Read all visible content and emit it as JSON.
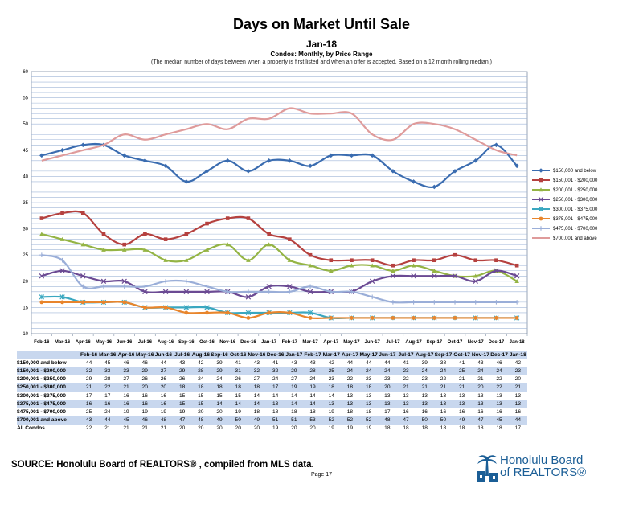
{
  "header": {
    "title": "Days on Market Until Sale",
    "subtitle": "Jan-18",
    "subtitle2": "Condos: Monthly, by Price Range",
    "note": "(The median number of days between when a property is first listed and when an offer is accepted. Based on a 12 month rolling median.)"
  },
  "chart_data": {
    "type": "line",
    "ylim": [
      10,
      60
    ],
    "yticks": [
      10,
      15,
      20,
      25,
      30,
      35,
      40,
      45,
      50,
      55,
      60
    ],
    "grid": true,
    "legend": "right",
    "categories": [
      "Feb-16",
      "Mar-16",
      "Apr-16",
      "May-16",
      "Jun-16",
      "Jul-16",
      "Aug-16",
      "Sep-16",
      "Oct-16",
      "Nov-16",
      "Dec-16",
      "Jan-17",
      "Feb-17",
      "Mar-17",
      "Apr-17",
      "May-17",
      "Jun-17",
      "Jul-17",
      "Aug-17",
      "Sep-17",
      "Oct-17",
      "Nov-17",
      "Dec-17",
      "Jan-18"
    ],
    "xtick_labels": [
      "Feb-16",
      "Mar-16",
      "Apr-16",
      "May-16",
      "Jun-16",
      "Jul-16",
      "Aug-16",
      "Sep-16",
      "Oct-16",
      "Nov-16",
      "Dec-16",
      "Jan-17",
      "Feb-17",
      "Mar-17",
      "Apr-17",
      "May-17",
      "Jun-17",
      "Jul-17",
      "Aug-17",
      "Sep-17",
      "Oct-17",
      "Nov-17",
      "Dec-17",
      "Jan-18"
    ],
    "table_headers": [
      "Feb-16",
      "Mar-16",
      "Apr-16",
      "May-16",
      "Jun-16",
      "Jul-16",
      "Aug-16",
      "Sep-16",
      "Oct-16",
      "Nov-16",
      "Dec-16",
      "Jan-17",
      "Feb-17",
      "Mar-17",
      "Apr-17",
      "May-17",
      "Jun-17",
      "Jul-17",
      "Aug-17",
      "Sep-17",
      "Oct-17",
      "Nov-17",
      "Dec-17",
      "Jan-18"
    ],
    "series": [
      {
        "name": "$150,000 and below",
        "table_label": "$150,000 and below",
        "color": "#3a6cb0",
        "marker": "diamond",
        "values": [
          44,
          45,
          46,
          46,
          44,
          43,
          42,
          39,
          41,
          43,
          41,
          43,
          43,
          42,
          44,
          44,
          44,
          41,
          39,
          38,
          41,
          43,
          46,
          42
        ],
        "in_chart": true
      },
      {
        "name": "$150,001 - $200,000",
        "table_label": "$150,001 - $200,000",
        "color": "#b5413f",
        "marker": "square",
        "values": [
          32,
          33,
          33,
          29,
          27,
          29,
          28,
          29,
          31,
          32,
          32,
          29,
          28,
          25,
          24,
          24,
          24,
          23,
          24,
          24,
          25,
          24,
          24,
          23
        ],
        "in_chart": true
      },
      {
        "name": "$200,001 - $250,000",
        "table_label": "$200,001 - $250,000",
        "color": "#94b444",
        "marker": "triangle",
        "values": [
          29,
          28,
          27,
          26,
          26,
          26,
          24,
          24,
          26,
          27,
          24,
          27,
          24,
          23,
          22,
          23,
          23,
          22,
          23,
          22,
          21,
          21,
          22,
          20
        ],
        "in_chart": true
      },
      {
        "name": "$250,001 - $300,000",
        "table_label": "$250,001 - $300,000",
        "color": "#6b4a93",
        "marker": "x",
        "values": [
          21,
          22,
          21,
          20,
          20,
          18,
          18,
          18,
          18,
          18,
          17,
          19,
          19,
          18,
          18,
          18,
          20,
          21,
          21,
          21,
          21,
          20,
          22,
          21
        ],
        "in_chart": true
      },
      {
        "name": "$300,001 - $375,000",
        "table_label": "$300,001 - $375,000",
        "color": "#3aa7c0",
        "marker": "star",
        "values": [
          17,
          17,
          16,
          16,
          16,
          15,
          15,
          15,
          15,
          14,
          14,
          14,
          14,
          14,
          13,
          13,
          13,
          13,
          13,
          13,
          13,
          13,
          13,
          13
        ],
        "in_chart": true
      },
      {
        "name": "$375,001 - $475,000",
        "table_label": "$375,001 - $475,000",
        "color": "#e8852c",
        "marker": "circle",
        "values": [
          16,
          16,
          16,
          16,
          16,
          15,
          15,
          14,
          14,
          14,
          13,
          14,
          14,
          13,
          13,
          13,
          13,
          13,
          13,
          13,
          13,
          13,
          13,
          13
        ],
        "in_chart": true
      },
      {
        "name": "$475,001 - $700,000",
        "table_label": "$475,001 - $700,000",
        "color": "#9aaed8",
        "marker": "plus",
        "values": [
          25,
          24,
          19,
          19,
          19,
          19,
          20,
          20,
          19,
          18,
          18,
          18,
          18,
          19,
          18,
          18,
          17,
          16,
          16,
          16,
          16,
          16,
          16,
          16
        ],
        "in_chart": true
      },
      {
        "name": "$700,001 and above",
        "table_label": "$700,001 and above",
        "color": "#df9b9b",
        "marker": "none",
        "values": [
          43,
          44,
          45,
          46,
          48,
          47,
          48,
          49,
          50,
          49,
          51,
          51,
          53,
          52,
          52,
          52,
          48,
          47,
          50,
          50,
          49,
          47,
          45,
          44
        ],
        "in_chart": true
      },
      {
        "name": "All Condos",
        "table_label": "All Condos",
        "color": "#000000",
        "marker": "none",
        "values": [
          22,
          21,
          21,
          21,
          21,
          20,
          20,
          20,
          20,
          20,
          19,
          20,
          20,
          19,
          19,
          19,
          18,
          18,
          18,
          18,
          18,
          18,
          18,
          17
        ],
        "in_chart": false
      }
    ]
  },
  "footer": {
    "source": "SOURCE:  Honolulu Board of REALTORS® , compiled from MLS data.",
    "page": "Page 17",
    "logo_line1": "Honolulu Board",
    "logo_line2": "of REALTORS®"
  }
}
